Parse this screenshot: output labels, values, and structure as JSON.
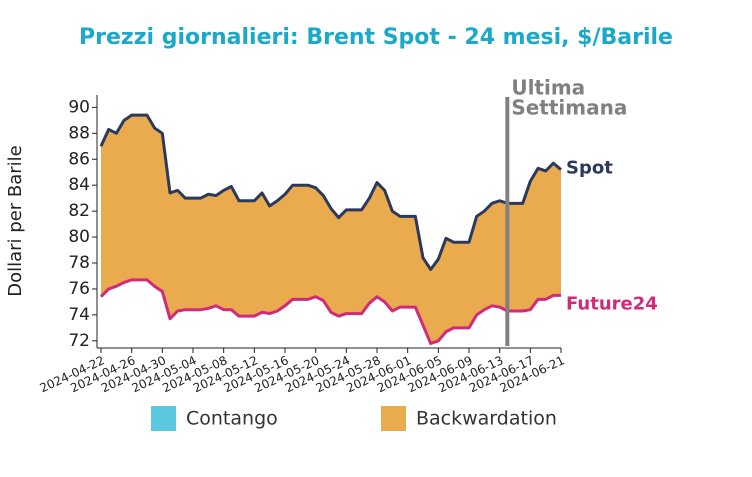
{
  "chart_data": {
    "type": "line",
    "title": "Prezzi giornalieri: Brent Spot - 24 mesi, $/Barile",
    "y_label": "Dollari per Barile",
    "x": [
      "2024-04-22",
      "2024-04-23",
      "2024-04-24",
      "2024-04-25",
      "2024-04-26",
      "2024-04-27",
      "2024-04-28",
      "2024-04-29",
      "2024-04-30",
      "2024-05-01",
      "2024-05-02",
      "2024-05-03",
      "2024-05-04",
      "2024-05-05",
      "2024-05-06",
      "2024-05-07",
      "2024-05-08",
      "2024-05-09",
      "2024-05-10",
      "2024-05-11",
      "2024-05-12",
      "2024-05-13",
      "2024-05-14",
      "2024-05-15",
      "2024-05-16",
      "2024-05-17",
      "2024-05-18",
      "2024-05-19",
      "2024-05-20",
      "2024-05-21",
      "2024-05-22",
      "2024-05-23",
      "2024-05-24",
      "2024-05-25",
      "2024-05-26",
      "2024-05-27",
      "2024-05-28",
      "2024-05-29",
      "2024-05-30",
      "2024-05-31",
      "2024-06-01",
      "2024-06-02",
      "2024-06-03",
      "2024-06-04",
      "2024-06-05",
      "2024-06-06",
      "2024-06-07",
      "2024-06-08",
      "2024-06-09",
      "2024-06-10",
      "2024-06-11",
      "2024-06-12",
      "2024-06-13",
      "2024-06-14",
      "2024-06-15",
      "2024-06-16",
      "2024-06-17",
      "2024-06-18",
      "2024-06-19",
      "2024-06-20",
      "2024-06-21"
    ],
    "series": [
      {
        "name": "Spot",
        "color": "#2b3a5c",
        "values": [
          87,
          88.3,
          88,
          89,
          89.4,
          89.4,
          89.4,
          88.4,
          88,
          83.4,
          83.6,
          83,
          83,
          83,
          83.3,
          83.2,
          83.6,
          83.9,
          82.8,
          82.8,
          82.8,
          83.4,
          82.4,
          82.8,
          83.3,
          84,
          84,
          84,
          83.8,
          83.2,
          82.2,
          81.5,
          82.1,
          82.1,
          82.1,
          83,
          84.2,
          83.6,
          82,
          81.6,
          81.6,
          81.6,
          78.4,
          77.5,
          78.3,
          79.9,
          79.6,
          79.6,
          79.6,
          81.6,
          82,
          82.6,
          82.8,
          82.6,
          82.6,
          82.6,
          84.3,
          85.3,
          85.1,
          85.7,
          85.2
        ]
      },
      {
        "name": "Future24",
        "color": "#d02a78",
        "values": [
          75.4,
          76,
          76.2,
          76.5,
          76.7,
          76.7,
          76.7,
          76.2,
          75.8,
          73.7,
          74.3,
          74.4,
          74.4,
          74.4,
          74.5,
          74.7,
          74.4,
          74.4,
          73.9,
          73.9,
          73.9,
          74.2,
          74.1,
          74.3,
          74.7,
          75.2,
          75.2,
          75.2,
          75.4,
          75.1,
          74.2,
          73.9,
          74.1,
          74.1,
          74.1,
          74.9,
          75.4,
          75,
          74.3,
          74.6,
          74.6,
          74.6,
          73.2,
          71.8,
          72,
          72.7,
          73,
          73,
          73,
          74,
          74.4,
          74.7,
          74.6,
          74.3,
          74.3,
          74.3,
          74.4,
          75.2,
          75.2,
          75.5,
          75.5
        ]
      }
    ],
    "legend": [
      {
        "name": "Contango",
        "color": "#5bc8e0"
      },
      {
        "name": "Backwardation",
        "color": "#eaaa4e"
      }
    ],
    "annotation": {
      "lines": [
        "Ultima",
        "Settimana"
      ],
      "x": "2024-06-14",
      "color": "#808080"
    },
    "xlim": [
      "2024-04-22",
      "2024-06-21"
    ],
    "xticks": [
      "2024-04-22",
      "2024-04-26",
      "2024-04-30",
      "2024-05-04",
      "2024-05-08",
      "2024-05-12",
      "2024-05-16",
      "2024-05-20",
      "2024-05-24",
      "2024-05-28",
      "2024-06-01",
      "2024-06-05",
      "2024-06-09",
      "2024-06-13",
      "2024-06-17",
      "2024-06-21"
    ],
    "ylim": [
      71.6,
      90.8
    ],
    "yticks": [
      72,
      74,
      76,
      78,
      80,
      82,
      84,
      86,
      88,
      90
    ]
  }
}
